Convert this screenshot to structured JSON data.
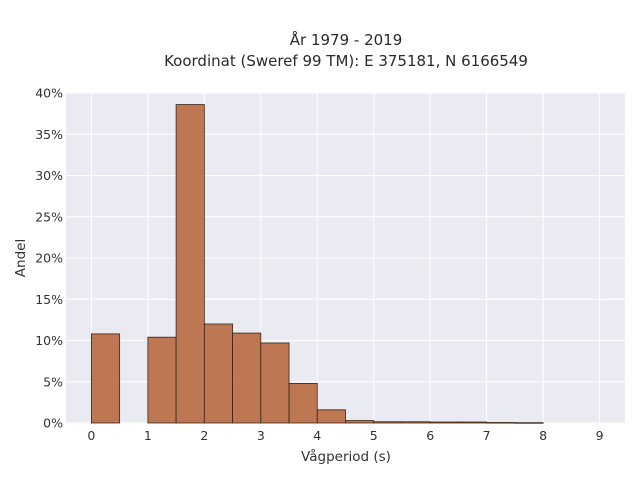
{
  "chart_data": {
    "type": "bar",
    "title_line1": "År 1979 - 2019",
    "title_line2": "Koordinat (Sweref 99 TM): E 375181, N 6166549",
    "xlabel": "Vågperiod (s)",
    "ylabel": "Andel",
    "xlim": [
      -0.45,
      9.45
    ],
    "ylim": [
      0,
      0.4
    ],
    "xticks": [
      0,
      1,
      2,
      3,
      4,
      5,
      6,
      7,
      8,
      9
    ],
    "xtick_labels": [
      "0",
      "1",
      "2",
      "3",
      "4",
      "5",
      "6",
      "7",
      "8",
      "9"
    ],
    "yticks": [
      0,
      0.05,
      0.1,
      0.15,
      0.2,
      0.25,
      0.3,
      0.35,
      0.4
    ],
    "ytick_labels": [
      "0%",
      "5%",
      "10%",
      "15%",
      "20%",
      "25%",
      "30%",
      "35%",
      "40%"
    ],
    "grid": true,
    "background": "#eaeaf2",
    "bar_color": "#b86a41",
    "bins": [
      {
        "x0": 0.0,
        "x1": 0.5,
        "value": 0.108
      },
      {
        "x0": 1.0,
        "x1": 1.5,
        "value": 0.104
      },
      {
        "x0": 1.5,
        "x1": 2.0,
        "value": 0.386
      },
      {
        "x0": 2.0,
        "x1": 2.5,
        "value": 0.12
      },
      {
        "x0": 2.5,
        "x1": 3.0,
        "value": 0.109
      },
      {
        "x0": 3.0,
        "x1": 3.5,
        "value": 0.097
      },
      {
        "x0": 3.5,
        "x1": 4.0,
        "value": 0.048
      },
      {
        "x0": 4.0,
        "x1": 4.5,
        "value": 0.016
      },
      {
        "x0": 4.5,
        "x1": 5.0,
        "value": 0.003
      },
      {
        "x0": 5.0,
        "x1": 5.5,
        "value": 0.0015
      },
      {
        "x0": 5.5,
        "x1": 6.0,
        "value": 0.0015
      },
      {
        "x0": 6.0,
        "x1": 6.5,
        "value": 0.0012
      },
      {
        "x0": 6.5,
        "x1": 7.0,
        "value": 0.0012
      },
      {
        "x0": 7.0,
        "x1": 7.5,
        "value": 0.0006
      },
      {
        "x0": 7.5,
        "x1": 8.0,
        "value": 0.0004
      }
    ]
  }
}
